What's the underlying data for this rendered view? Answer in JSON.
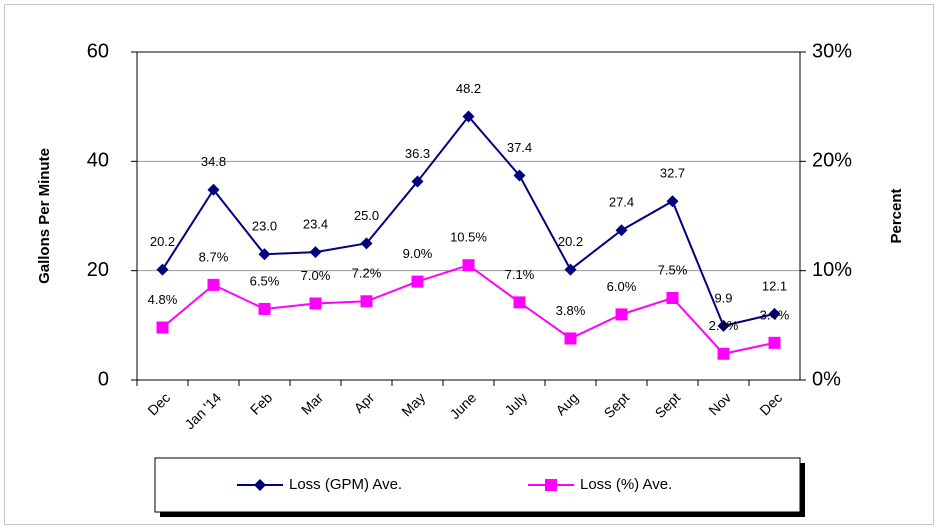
{
  "chart_data": {
    "type": "line",
    "categories": [
      "Dec",
      "Jan '14",
      "Feb",
      "Mar",
      "Apr",
      "May",
      "June",
      "July",
      "Aug",
      "Sept",
      "Sept",
      "Nov",
      "Dec"
    ],
    "y_label": "Gallons Per Minute",
    "y2_label": "Percent",
    "ylim": [
      0,
      60
    ],
    "yticks": [
      0,
      20,
      40,
      60
    ],
    "y2lim": [
      0,
      30
    ],
    "y2ticks": [
      {
        "value": 0,
        "label": "0%"
      },
      {
        "value": 10,
        "label": "10%"
      },
      {
        "value": 20,
        "label": "20%"
      },
      {
        "value": 30,
        "label": "30%"
      }
    ],
    "grid": true,
    "legend": "bottom",
    "series": [
      {
        "name": "Loss (GPM) Ave.",
        "color": "#000080",
        "marker": "diamond",
        "values": [
          20.2,
          34.8,
          23.0,
          23.4,
          25.0,
          36.3,
          48.2,
          37.4,
          20.2,
          27.4,
          32.7,
          9.9,
          12.1
        ],
        "value_labels": [
          "20.2",
          "34.8",
          "23.0",
          "23.4",
          "25.0",
          "36.3",
          "48.2",
          "37.4",
          "20.2",
          "27.4",
          "32.7",
          "9.9",
          "12.1"
        ]
      },
      {
        "name": "Loss (%) Ave.",
        "color": "#ff00ff",
        "marker": "square",
        "axis": "y2",
        "values": [
          4.8,
          8.7,
          6.5,
          7.0,
          7.2,
          9.0,
          10.5,
          7.1,
          3.8,
          6.0,
          7.5,
          2.4,
          3.4
        ],
        "value_labels": [
          "4.8%",
          "8.7%",
          "6.5%",
          "7.0%",
          "7.2%",
          "9.0%",
          "10.5%",
          "7.1%",
          "3.8%",
          "6.0%",
          "7.5%",
          "2.4%",
          "3.4%"
        ]
      }
    ]
  }
}
